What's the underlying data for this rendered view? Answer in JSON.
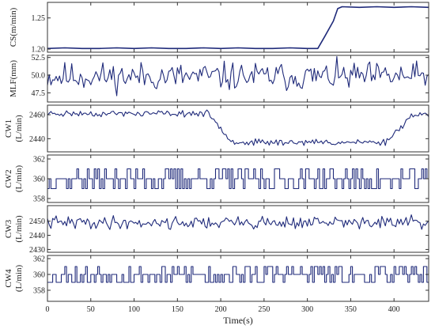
{
  "chart_data": {
    "type": "line",
    "xlabel": "Time(s)",
    "xlim": [
      0,
      440
    ],
    "xticks": [
      "0",
      "50",
      "100",
      "150",
      "200",
      "250",
      "300",
      "350",
      "400"
    ],
    "line_color": "#1f2a7a",
    "panels": [
      {
        "ylabel_1": "CS(m/min)",
        "ylabel_2": "",
        "ylim": [
          1.195,
          1.275
        ],
        "yticks": [
          {
            "v": 1.2,
            "t": "1.20"
          },
          {
            "v": 1.25,
            "t": "1.25"
          }
        ],
        "series": {
          "kind": "cs",
          "x": [
            0,
            20,
            40,
            60,
            80,
            100,
            120,
            140,
            160,
            180,
            200,
            220,
            240,
            260,
            280,
            300,
            312,
            320,
            330,
            335,
            340,
            360,
            380,
            400,
            420,
            440
          ],
          "y": [
            1.201,
            1.202,
            1.201,
            1.201,
            1.202,
            1.201,
            1.202,
            1.201,
            1.201,
            1.202,
            1.201,
            1.202,
            1.201,
            1.201,
            1.202,
            1.201,
            1.201,
            1.22,
            1.245,
            1.265,
            1.268,
            1.267,
            1.268,
            1.267,
            1.268,
            1.267
          ]
        }
      },
      {
        "ylabel_1": "MLF(mm)",
        "ylabel_2": "",
        "ylim": [
          46.2,
          52.8
        ],
        "yticks": [
          {
            "v": 47.5,
            "t": "47.5"
          },
          {
            "v": 50.0,
            "t": "50.0"
          },
          {
            "v": 52.5,
            "t": "52.5"
          }
        ],
        "series": {
          "kind": "noise",
          "base": 49.8,
          "amp": 2.2,
          "step": 2,
          "seed": 11
        }
      },
      {
        "ylabel_1": "CW1",
        "ylabel_2": "(L/min)",
        "ylim": [
          2429,
          2468
        ],
        "yticks": [
          {
            "v": 2440,
            "t": "2440"
          },
          {
            "v": 2460,
            "t": "2460"
          }
        ],
        "series": {
          "kind": "cw1",
          "step": 2,
          "seed": 23
        }
      },
      {
        "ylabel_1": "CW2",
        "ylabel_2": "(L/min)",
        "ylim": [
          357.6,
          362.4
        ],
        "yticks": [
          {
            "v": 358,
            "t": "358"
          },
          {
            "v": 360,
            "t": "360"
          },
          {
            "v": 362,
            "t": "362"
          }
        ],
        "series": {
          "kind": "steps",
          "levels": [
            359,
            360,
            361
          ],
          "probs": [
            0.28,
            0.5,
            0.22
          ],
          "step": 2,
          "seed": 37
        }
      },
      {
        "ylabel_1": "CW3",
        "ylabel_2": "(L/min)",
        "ylim": [
          2428,
          2461
        ],
        "yticks": [
          {
            "v": 2430,
            "t": "2430"
          },
          {
            "v": 2440,
            "t": "2440"
          },
          {
            "v": 2450,
            "t": "2450"
          }
        ],
        "series": {
          "kind": "noise",
          "base": 2449,
          "amp": 5,
          "step": 2,
          "seed": 41
        }
      },
      {
        "ylabel_1": "CW4",
        "ylabel_2": "(L/min)",
        "ylim": [
          356.6,
          362.4
        ],
        "yticks": [
          {
            "v": 358,
            "t": "358"
          },
          {
            "v": 360,
            "t": "360"
          },
          {
            "v": 362,
            "t": "362"
          }
        ],
        "series": {
          "kind": "steps",
          "levels": [
            359,
            360,
            361
          ],
          "probs": [
            0.3,
            0.45,
            0.25
          ],
          "step": 2,
          "seed": 53
        }
      }
    ]
  }
}
